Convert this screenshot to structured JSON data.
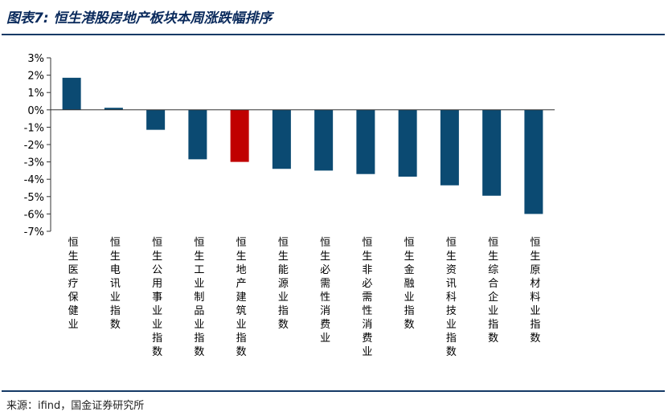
{
  "figure": {
    "title": "图表7: 恒生港股房地产板块本周涨跌幅排序",
    "source": "来源：ifind，国金证券研究所"
  },
  "colors": {
    "bar": "#0b4a72",
    "highlight": "#c00000",
    "axis": "#333333",
    "text": "#000000"
  },
  "chart_data": {
    "type": "bar",
    "title": "图表7: 恒生港股房地产板块本周涨跌幅排序",
    "xlabel": "",
    "ylabel": "",
    "unit": "%",
    "ylim": [
      -7,
      3
    ],
    "yticks": [
      3,
      2,
      1,
      0,
      -1,
      -2,
      -3,
      -4,
      -5,
      -6,
      -7
    ],
    "ytick_labels": [
      "3%",
      "2%",
      "1%",
      "0%",
      "-1%",
      "-2%",
      "-3%",
      "-4%",
      "-5%",
      "-6%",
      "-7%"
    ],
    "grid": false,
    "legend": "none",
    "highlight_index": 4,
    "categories": [
      "恒生医疗保健业",
      "恒生电讯业指数",
      "恒生公用事业业指数",
      "恒生工业制品业指数",
      "恒生地产建筑业指数",
      "恒生能源业指数",
      "恒生必需性消费业",
      "恒生非必需性消费业",
      "恒生金融业指数",
      "恒生资讯科技业指数",
      "恒生综合企业指数",
      "恒生原材料业指数"
    ],
    "values": [
      1.85,
      0.12,
      -1.15,
      -2.85,
      -3.0,
      -3.4,
      -3.5,
      -3.7,
      -3.85,
      -4.35,
      -4.95,
      -6.0
    ]
  }
}
